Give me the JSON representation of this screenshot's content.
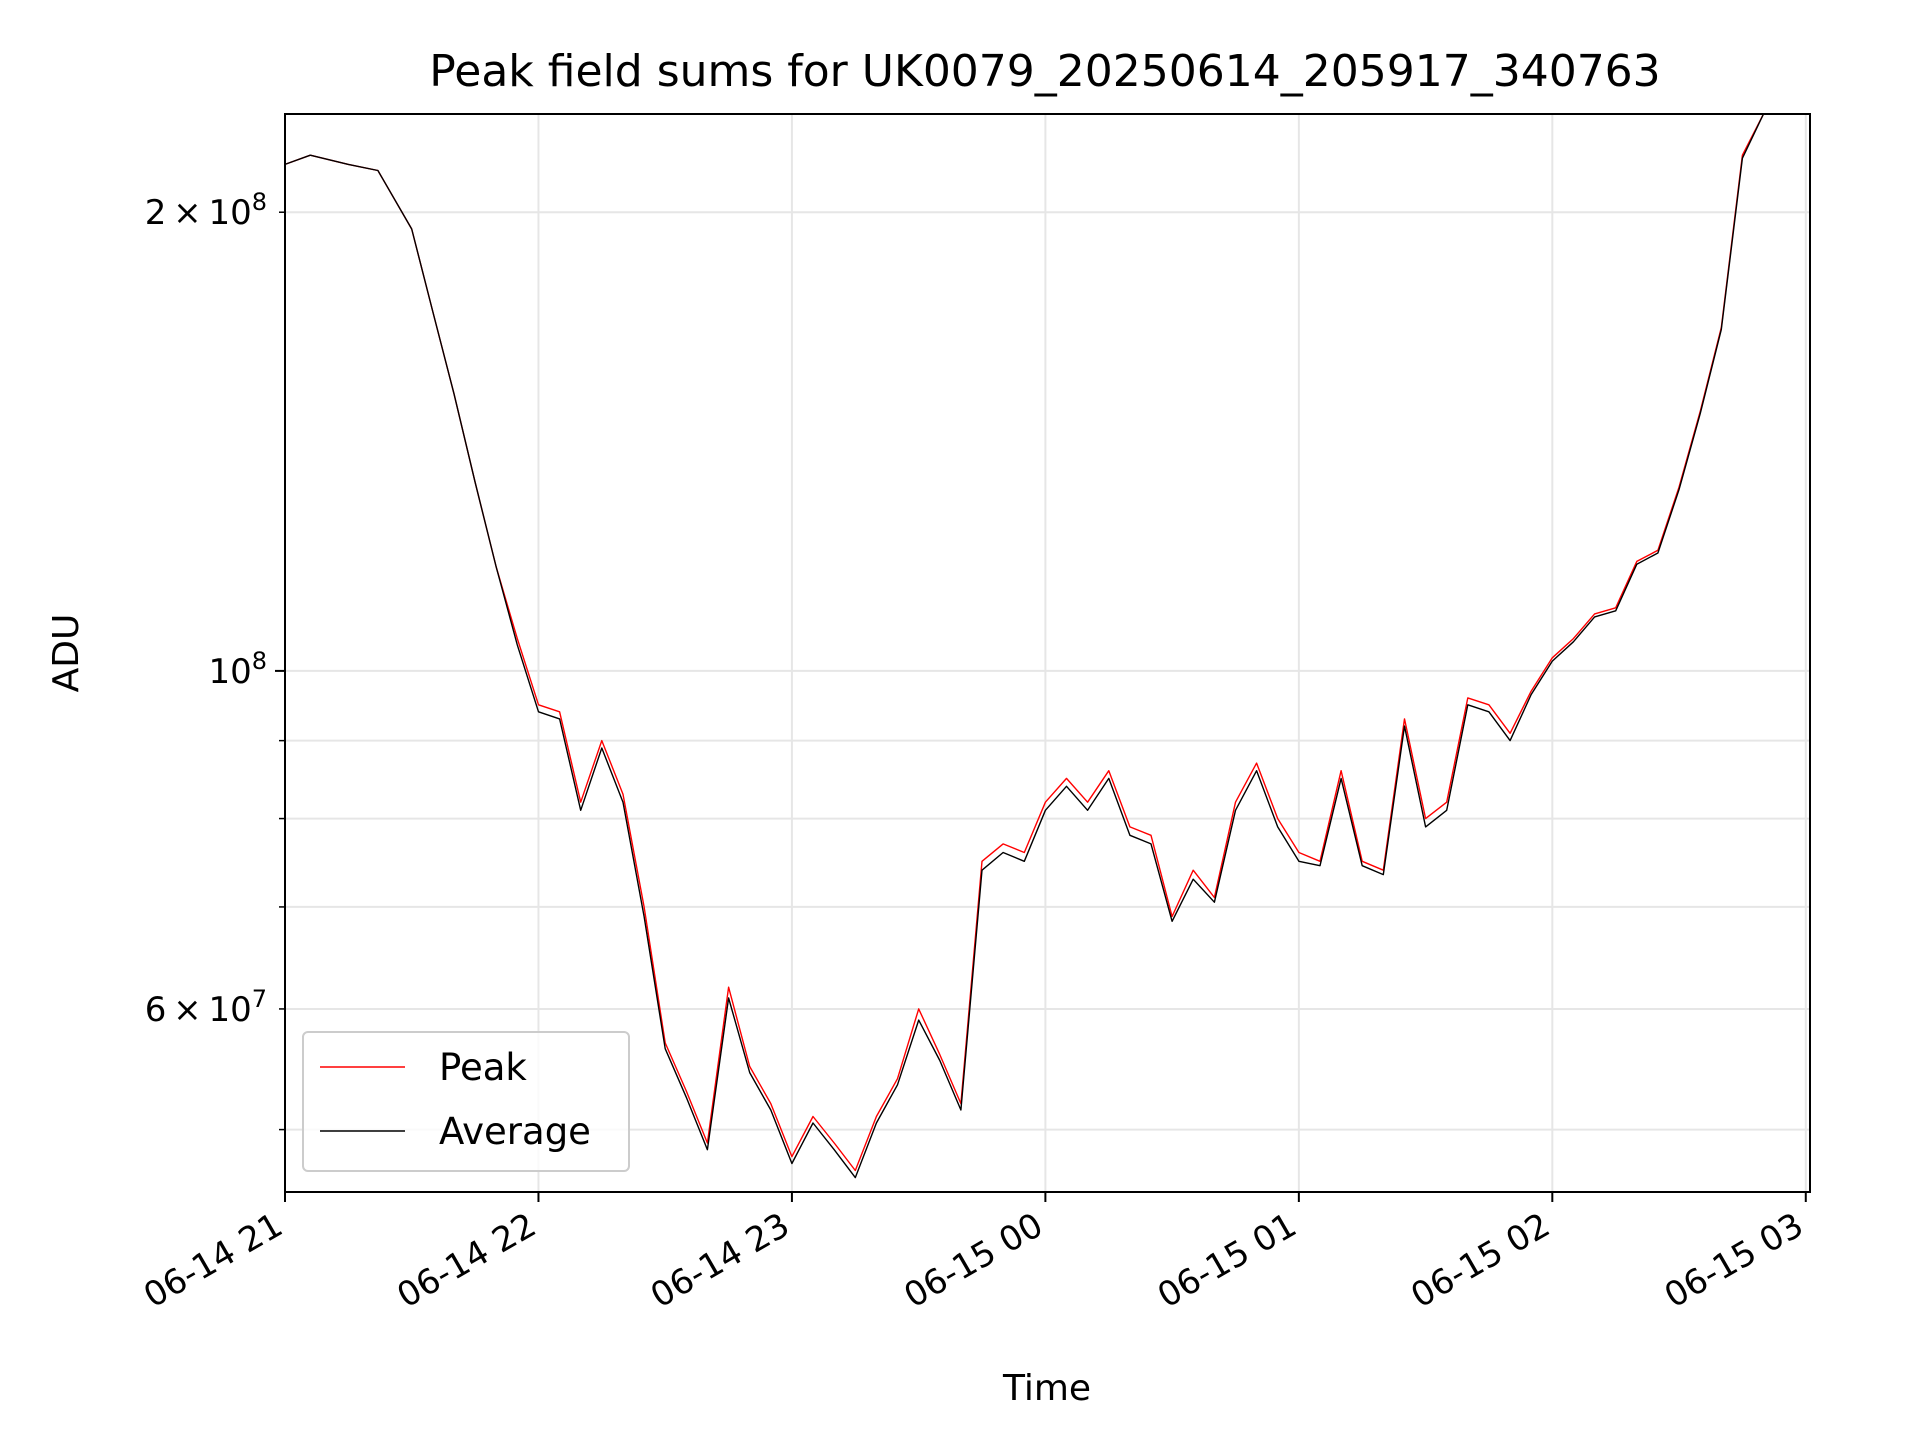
{
  "chart_data": {
    "type": "line",
    "title": "Peak field sums for UK0079_20250614_205917_340763",
    "xlabel": "Time",
    "ylabel": "ADU",
    "yscale": "log",
    "ylim": [
      45500000,
      232000000
    ],
    "grid": true,
    "legend_position": "lower-left",
    "x_tick_labels": [
      "06-14 21",
      "06-14 22",
      "06-14 23",
      "06-15 00",
      "06-15 01",
      "06-15 02",
      "06-15 03"
    ],
    "y_tick_labels": [
      {
        "value": 200000000,
        "mantissa": "2",
        "exponent": "8"
      },
      {
        "value": 100000000,
        "mantissa": "",
        "exponent": "8"
      },
      {
        "value": 60000000,
        "mantissa": "6",
        "exponent": "7"
      }
    ],
    "series": [
      {
        "name": "Peak",
        "color": "#ff0000",
        "x": [
          "2025-06-14 21:00",
          "2025-06-14 21:06",
          "2025-06-14 21:15",
          "2025-06-14 21:22",
          "2025-06-14 21:30",
          "2025-06-14 21:35",
          "2025-06-14 21:40",
          "2025-06-14 21:45",
          "2025-06-14 21:50",
          "2025-06-14 21:55",
          "2025-06-14 22:00",
          "2025-06-14 22:05",
          "2025-06-14 22:10",
          "2025-06-14 22:15",
          "2025-06-14 22:20",
          "2025-06-14 22:25",
          "2025-06-14 22:30",
          "2025-06-14 22:35",
          "2025-06-14 22:40",
          "2025-06-14 22:45",
          "2025-06-14 22:50",
          "2025-06-14 22:55",
          "2025-06-14 23:00",
          "2025-06-14 23:05",
          "2025-06-14 23:10",
          "2025-06-14 23:15",
          "2025-06-14 23:20",
          "2025-06-14 23:25",
          "2025-06-14 23:30",
          "2025-06-14 23:35",
          "2025-06-14 23:40",
          "2025-06-14 23:45",
          "2025-06-14 23:50",
          "2025-06-14 23:55",
          "2025-06-15 00:00",
          "2025-06-15 00:05",
          "2025-06-15 00:10",
          "2025-06-15 00:15",
          "2025-06-15 00:20",
          "2025-06-15 00:25",
          "2025-06-15 00:30",
          "2025-06-15 00:35",
          "2025-06-15 00:40",
          "2025-06-15 00:45",
          "2025-06-15 00:50",
          "2025-06-15 00:55",
          "2025-06-15 01:00",
          "2025-06-15 01:05",
          "2025-06-15 01:10",
          "2025-06-15 01:15",
          "2025-06-15 01:20",
          "2025-06-15 01:25",
          "2025-06-15 01:30",
          "2025-06-15 01:35",
          "2025-06-15 01:40",
          "2025-06-15 01:45",
          "2025-06-15 01:50",
          "2025-06-15 01:55",
          "2025-06-15 02:00",
          "2025-06-15 02:05",
          "2025-06-15 02:10",
          "2025-06-15 02:15",
          "2025-06-15 02:20",
          "2025-06-15 02:25",
          "2025-06-15 02:30",
          "2025-06-15 02:35",
          "2025-06-15 02:40",
          "2025-06-15 02:45",
          "2025-06-15 02:50"
        ],
        "values": [
          215000000,
          218000000,
          215000000,
          213000000,
          195000000,
          172000000,
          152000000,
          133000000,
          117000000,
          105000000,
          95000000,
          94000000,
          82000000,
          90000000,
          83000000,
          70000000,
          57000000,
          53000000,
          49000000,
          62000000,
          55000000,
          52000000,
          48000000,
          51000000,
          49000000,
          47000000,
          51000000,
          54000000,
          60000000,
          56000000,
          52000000,
          75000000,
          77000000,
          76000000,
          82000000,
          85000000,
          82000000,
          86000000,
          79000000,
          78000000,
          69000000,
          74000000,
          71000000,
          82000000,
          87000000,
          80000000,
          76000000,
          75000000,
          86000000,
          75000000,
          74000000,
          93000000,
          80000000,
          82000000,
          96000000,
          95000000,
          91000000,
          97000000,
          102000000,
          105000000,
          109000000,
          110000000,
          118000000,
          120000000,
          132000000,
          148000000,
          168000000,
          218000000,
          232000000
        ]
      },
      {
        "name": "Average",
        "color": "#000000",
        "x": [
          "2025-06-14 21:00",
          "2025-06-14 21:06",
          "2025-06-14 21:15",
          "2025-06-14 21:22",
          "2025-06-14 21:30",
          "2025-06-14 21:35",
          "2025-06-14 21:40",
          "2025-06-14 21:45",
          "2025-06-14 21:50",
          "2025-06-14 21:55",
          "2025-06-14 22:00",
          "2025-06-14 22:05",
          "2025-06-14 22:10",
          "2025-06-14 22:15",
          "2025-06-14 22:20",
          "2025-06-14 22:25",
          "2025-06-14 22:30",
          "2025-06-14 22:35",
          "2025-06-14 22:40",
          "2025-06-14 22:45",
          "2025-06-14 22:50",
          "2025-06-14 22:55",
          "2025-06-14 23:00",
          "2025-06-14 23:05",
          "2025-06-14 23:10",
          "2025-06-14 23:15",
          "2025-06-14 23:20",
          "2025-06-14 23:25",
          "2025-06-14 23:30",
          "2025-06-14 23:35",
          "2025-06-14 23:40",
          "2025-06-14 23:45",
          "2025-06-14 23:50",
          "2025-06-14 23:55",
          "2025-06-15 00:00",
          "2025-06-15 00:05",
          "2025-06-15 00:10",
          "2025-06-15 00:15",
          "2025-06-15 00:20",
          "2025-06-15 00:25",
          "2025-06-15 00:30",
          "2025-06-15 00:35",
          "2025-06-15 00:40",
          "2025-06-15 00:45",
          "2025-06-15 00:50",
          "2025-06-15 00:55",
          "2025-06-15 01:00",
          "2025-06-15 01:05",
          "2025-06-15 01:10",
          "2025-06-15 01:15",
          "2025-06-15 01:20",
          "2025-06-15 01:25",
          "2025-06-15 01:30",
          "2025-06-15 01:35",
          "2025-06-15 01:40",
          "2025-06-15 01:45",
          "2025-06-15 01:50",
          "2025-06-15 01:55",
          "2025-06-15 02:00",
          "2025-06-15 02:05",
          "2025-06-15 02:10",
          "2025-06-15 02:15",
          "2025-06-15 02:20",
          "2025-06-15 02:25",
          "2025-06-15 02:30",
          "2025-06-15 02:35",
          "2025-06-15 02:40",
          "2025-06-15 02:45",
          "2025-06-15 02:50"
        ],
        "values": [
          215000000,
          218000000,
          215000000,
          213000000,
          195000000,
          172000000,
          152000000,
          133000000,
          117000000,
          104000000,
          94000000,
          93000000,
          81000000,
          89000000,
          82000000,
          69000000,
          56500000,
          52500000,
          48500000,
          61000000,
          54500000,
          51500000,
          47500000,
          50500000,
          48500000,
          46500000,
          50500000,
          53500000,
          59000000,
          55500000,
          51500000,
          74000000,
          76000000,
          75000000,
          81000000,
          84000000,
          81000000,
          85000000,
          78000000,
          77000000,
          68500000,
          73000000,
          70500000,
          81000000,
          86000000,
          79000000,
          75000000,
          74500000,
          85000000,
          74500000,
          73500000,
          92000000,
          79000000,
          81000000,
          95000000,
          94000000,
          90000000,
          96500000,
          101500000,
          104500000,
          108500000,
          109500000,
          117500000,
          119500000,
          131500000,
          147500000,
          167500000,
          217000000,
          232000000
        ]
      }
    ]
  }
}
